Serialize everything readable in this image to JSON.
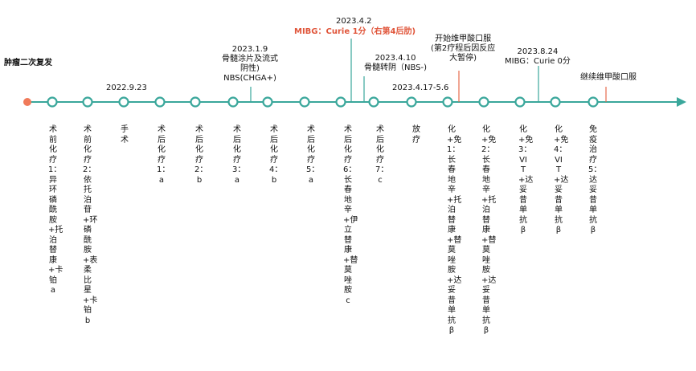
{
  "colors": {
    "axis": "#3aa79b",
    "node_stroke": "#3aa79b",
    "start_dot": "#f07a5a",
    "connector_teal": "#3aa79b",
    "connector_red": "#e66a4d",
    "red_text": "#e0553a"
  },
  "top_labels": [
    {
      "id": "recurrence",
      "text": "肿瘤二次复发",
      "style": "bold"
    },
    {
      "id": "d20220923",
      "text": "2022.9.23",
      "style": ""
    },
    {
      "id": "d20230109",
      "text": "2023.1.9\n骨髓涂片及流式\n阴性)\nNBS(CHGA+)",
      "style": ""
    },
    {
      "id": "d20230402a",
      "text": "2023.4.2",
      "style": ""
    },
    {
      "id": "d20230402b",
      "text": "MIBG：Curie 1分（右第4后肋)",
      "style": "red"
    },
    {
      "id": "d20230410",
      "text": "2023.4.10\n骨髓转阴（NBS-)",
      "style": ""
    },
    {
      "id": "d20230417",
      "text": "2023.4.17-5.6",
      "style": ""
    },
    {
      "id": "retinoic",
      "text": "开始维甲酸口服\n(第2疗程后因反应\n大暂停)",
      "style": ""
    },
    {
      "id": "d20230824",
      "text": "2023.8.24\nMIBG：Curie 0分",
      "style": ""
    },
    {
      "id": "continue",
      "text": "继续维甲酸口服",
      "style": ""
    }
  ],
  "nodes": [
    {
      "id": "n1",
      "text": "术前化疗1：异环磷酰胺+托泊替康+卡铂a"
    },
    {
      "id": "n2",
      "text": "术前化疗2：依托泊苷+环磷酰胺+表柔比星+卡铂b"
    },
    {
      "id": "n3",
      "text": "手术"
    },
    {
      "id": "n4",
      "text": "术后化疗1：a"
    },
    {
      "id": "n5",
      "text": "术后化疗2：b"
    },
    {
      "id": "n6",
      "text": "术后化疗3：a"
    },
    {
      "id": "n7",
      "text": "术后化疗4：b"
    },
    {
      "id": "n8",
      "text": "术后化疗5：a"
    },
    {
      "id": "n9",
      "text": "术后化疗6：长春地辛+伊立替康+替莫唑胺c"
    },
    {
      "id": "n10",
      "text": "术后化疗7：c"
    },
    {
      "id": "n11",
      "text": "放疗"
    },
    {
      "id": "n12",
      "text": "化+免1：长春地辛+托泊替康+替莫唑胺+达妥昔单抗β"
    },
    {
      "id": "n13",
      "text": "化+免2：长春地辛+托泊替康+替莫唑胺+达妥昔单抗β"
    },
    {
      "id": "n14",
      "text": "化+免3：VIT+达妥昔单抗β"
    },
    {
      "id": "n15",
      "text": "化+免4：VIT+达妥昔单抗β"
    },
    {
      "id": "n16",
      "text": "免疫治疗5：达妥昔单抗β"
    }
  ]
}
